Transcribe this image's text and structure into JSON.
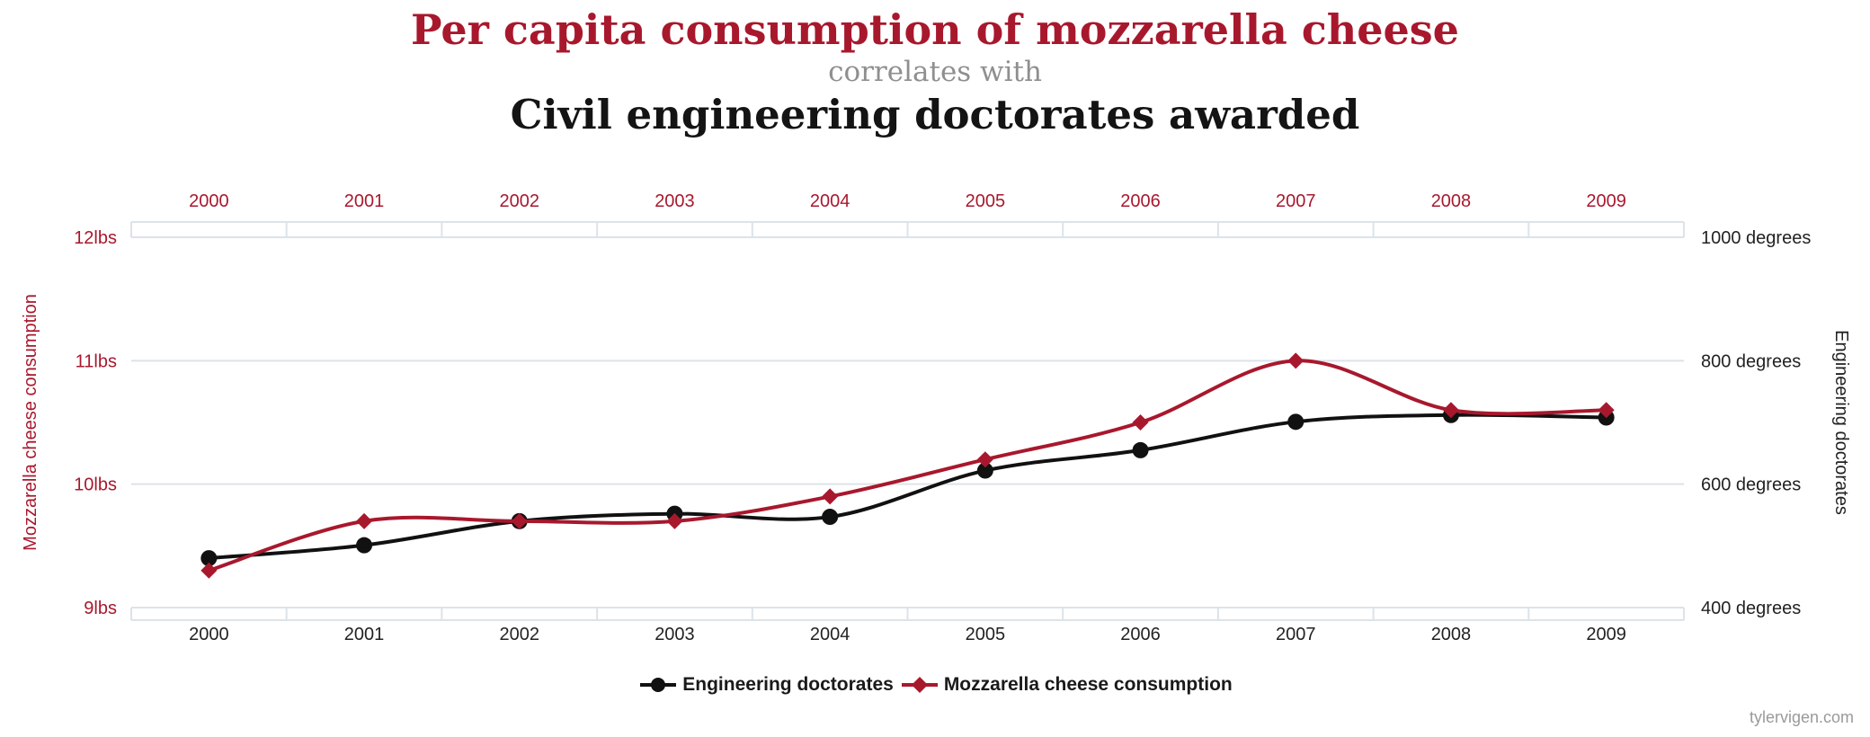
{
  "titles": {
    "line1": "Per capita consumption of mozzarella cheese",
    "line2": "correlates with",
    "line3": "Civil engineering doctorates awarded"
  },
  "watermark": "tylervigen.com",
  "colors": {
    "red": "#a8182d",
    "black": "#111111",
    "grid": "#dce3e9",
    "bottom_label": "#222222",
    "gray_text": "#9a9a9a"
  },
  "chart_data": {
    "type": "line",
    "categories": [
      "2000",
      "2001",
      "2002",
      "2003",
      "2004",
      "2005",
      "2006",
      "2007",
      "2008",
      "2009"
    ],
    "series": [
      {
        "name": "Engineering doctorates",
        "color": "#111111",
        "marker": "circle",
        "axis": "right",
        "values": [
          480,
          501,
          540,
          552,
          547,
          622,
          655,
          701,
          712,
          708
        ]
      },
      {
        "name": "Mozzarella cheese consumption",
        "color": "#a8182d",
        "marker": "diamond",
        "axis": "left",
        "values": [
          9.3,
          9.7,
          9.7,
          9.7,
          9.9,
          10.2,
          10.5,
          11.0,
          10.6,
          10.6
        ]
      }
    ],
    "left_axis": {
      "title": "Mozzarella cheese consumption",
      "ticks": [
        "9lbs",
        "10lbs",
        "11lbs",
        "12lbs"
      ],
      "tick_values": [
        9,
        10,
        11,
        12
      ],
      "range": [
        9,
        12
      ]
    },
    "right_axis": {
      "title": "Engineering doctorates",
      "ticks": [
        "400 degrees",
        "600 degrees",
        "800 degrees",
        "1000 degrees"
      ],
      "tick_values": [
        400,
        600,
        800,
        1000
      ],
      "range": [
        400,
        1000
      ]
    },
    "grid": true,
    "legend_position": "bottom"
  }
}
